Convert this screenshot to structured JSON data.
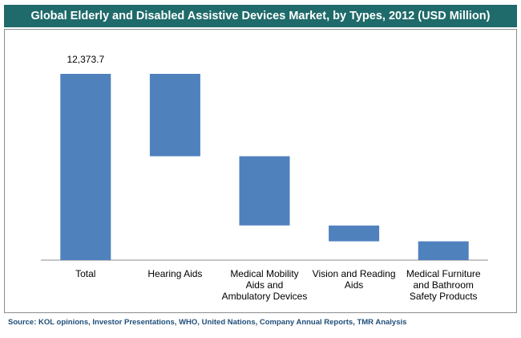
{
  "header": {
    "title": "Global Elderly and Disabled Assistive Devices  Market, by Types, 2012 (USD Million)"
  },
  "footer": {
    "source": "Source: KOL opinions, Investor Presentations, WHO, United Nations,  Company Annual Reports, TMR  Analysis"
  },
  "colors": {
    "title_bg": "#1f6a6a",
    "bar": "#4f81bd",
    "source_text": "#1f4e79"
  },
  "chart_data": {
    "type": "bar",
    "subtype": "waterfall",
    "title": "Global Elderly and Disabled Assistive Devices  Market, by Types, 2012 (USD Million)",
    "categories": [
      [
        "Total"
      ],
      [
        "Hearing Aids"
      ],
      [
        "Medical Mobility",
        "Aids and",
        "Ambulatory Devices"
      ],
      [
        "Vision and Reading",
        "Aids"
      ],
      [
        "Medical Furniture",
        "and Bathroom",
        "Safety Products"
      ]
    ],
    "bars": [
      {
        "bottom": 0,
        "top": 12373.7
      },
      {
        "bottom": 6900,
        "top": 12373.7
      },
      {
        "bottom": 2300,
        "top": 6900
      },
      {
        "bottom": 1250,
        "top": 2300
      },
      {
        "bottom": 0,
        "top": 1250
      }
    ],
    "data_labels": [
      "12,373.7",
      "",
      "",
      "",
      ""
    ],
    "ylim": [
      0,
      14000
    ],
    "grid": false,
    "legend": "none"
  }
}
